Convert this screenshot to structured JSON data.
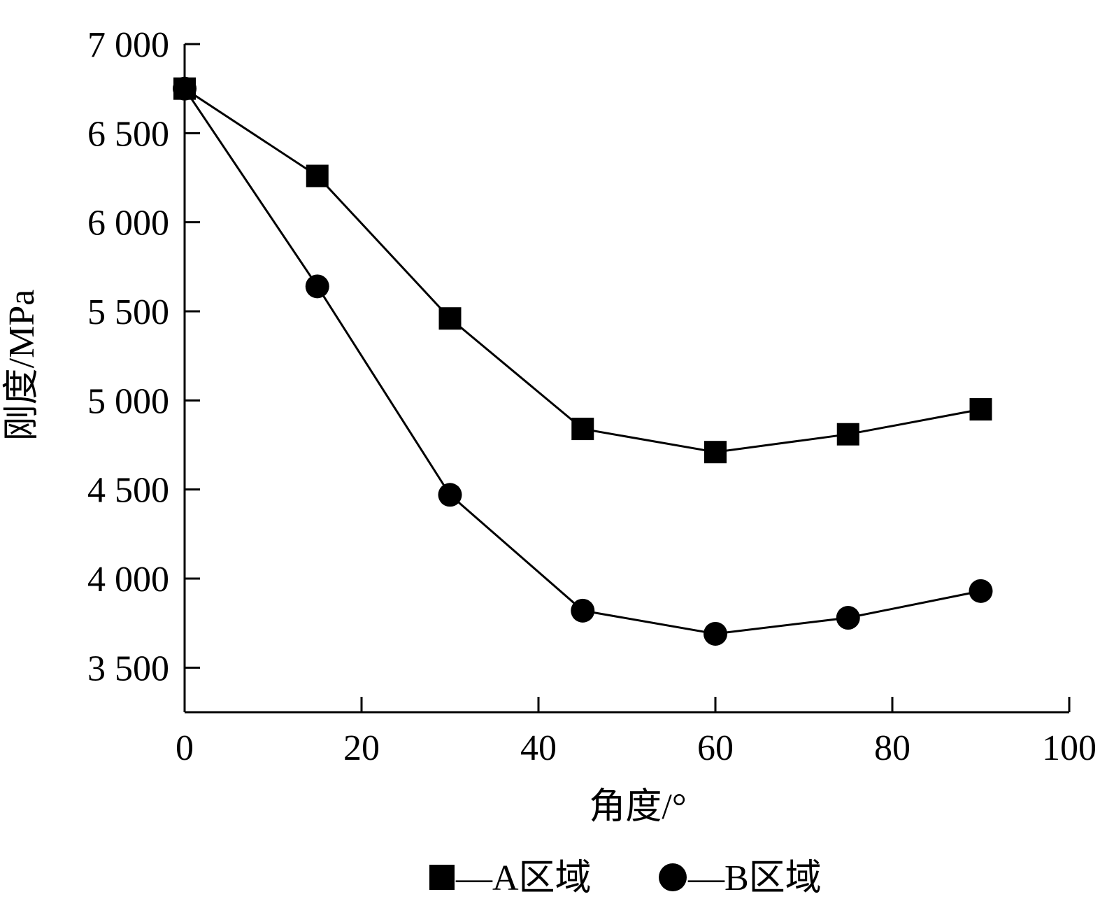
{
  "chart_data": {
    "type": "line",
    "title": "",
    "xlabel": "角度/°",
    "ylabel": "刚度/MPa",
    "xlim": [
      0,
      100
    ],
    "ylim": [
      3250,
      7000
    ],
    "x_ticks": [
      0,
      20,
      40,
      60,
      80,
      100
    ],
    "x_tick_labels": [
      "0",
      "20",
      "40",
      "60",
      "80",
      "100"
    ],
    "y_ticks": [
      3500,
      4000,
      4500,
      5000,
      5500,
      6000,
      6500,
      7000
    ],
    "y_tick_labels": [
      "3 500",
      "4 000",
      "4 500",
      "5 000",
      "5 500",
      "6 000",
      "6 500",
      "7 000"
    ],
    "grid": false,
    "legend_position": "bottom",
    "x": [
      0,
      15,
      30,
      45,
      60,
      75,
      90
    ],
    "series": [
      {
        "name": "A区域",
        "legend_label": "—A区域",
        "marker": "square",
        "values": [
          6750,
          6260,
          5460,
          4840,
          4710,
          4810,
          4950
        ]
      },
      {
        "name": "B区域",
        "legend_label": "—B区域",
        "marker": "circle",
        "values": [
          6750,
          5640,
          4470,
          3820,
          3690,
          3780,
          3930
        ]
      }
    ],
    "colors": {
      "line": "#000000",
      "marker": "#000000",
      "background": "#ffffff"
    }
  }
}
